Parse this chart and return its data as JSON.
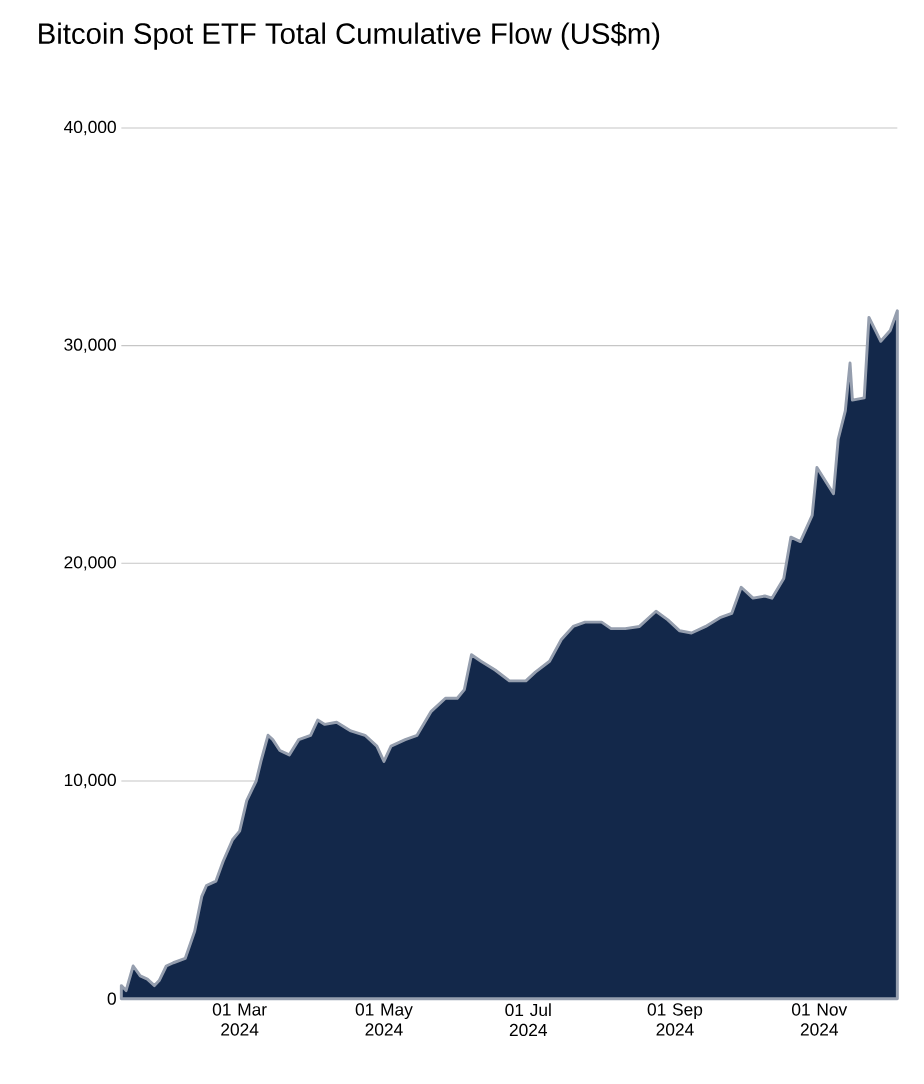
{
  "chart_data": {
    "type": "area",
    "title": "Bitcoin Spot ETF Total Cumulative Flow (US$m)",
    "x": [
      "2024-01-11",
      "2024-01-13",
      "2024-01-16",
      "2024-01-19",
      "2024-01-22",
      "2024-01-25",
      "2024-01-27",
      "2024-01-30",
      "2024-02-02",
      "2024-02-07",
      "2024-02-11",
      "2024-02-14",
      "2024-02-16",
      "2024-02-20",
      "2024-02-23",
      "2024-02-27",
      "2024-03-01",
      "2024-03-04",
      "2024-03-08",
      "2024-03-10",
      "2024-03-13",
      "2024-03-15",
      "2024-03-18",
      "2024-03-22",
      "2024-03-26",
      "2024-03-31",
      "2024-04-03",
      "2024-04-06",
      "2024-04-11",
      "2024-04-17",
      "2024-04-23",
      "2024-04-28",
      "2024-05-01",
      "2024-05-04",
      "2024-05-10",
      "2024-05-15",
      "2024-05-21",
      "2024-05-27",
      "2024-06-01",
      "2024-06-04",
      "2024-06-07",
      "2024-06-11",
      "2024-06-17",
      "2024-06-23",
      "2024-06-30",
      "2024-07-04",
      "2024-07-10",
      "2024-07-15",
      "2024-07-20",
      "2024-07-25",
      "2024-08-01",
      "2024-08-05",
      "2024-08-11",
      "2024-08-17",
      "2024-08-24",
      "2024-08-29",
      "2024-09-03",
      "2024-09-08",
      "2024-09-14",
      "2024-09-20",
      "2024-09-25",
      "2024-09-29",
      "2024-10-04",
      "2024-10-09",
      "2024-10-12",
      "2024-10-17",
      "2024-10-20",
      "2024-10-24",
      "2024-10-29",
      "2024-10-31",
      "2024-11-07",
      "2024-11-09",
      "2024-11-12",
      "2024-11-14",
      "2024-11-15",
      "2024-11-20",
      "2024-11-22",
      "2024-11-27",
      "2024-12-01",
      "2024-12-04"
    ],
    "series": [
      {
        "color": "#13284a",
        "values": [
          600,
          370,
          1500,
          1050,
          900,
          600,
          830,
          1500,
          1650,
          1850,
          3100,
          4700,
          5200,
          5400,
          6300,
          7300,
          7700,
          9100,
          10000,
          10900,
          12100,
          11900,
          11400,
          11200,
          11900,
          12100,
          12800,
          12600,
          12700,
          12300,
          12100,
          11600,
          10900,
          11600,
          11900,
          12100,
          13200,
          13800,
          13800,
          14200,
          15800,
          15500,
          15100,
          14600,
          14600,
          15000,
          15500,
          16500,
          17100,
          17300,
          17300,
          17000,
          17000,
          17100,
          17800,
          17400,
          16900,
          16800,
          17100,
          17500,
          17700,
          18900,
          18400,
          18500,
          18400,
          19300,
          21200,
          21000,
          22200,
          24400,
          23200,
          25700,
          27000,
          29200,
          27500,
          27600,
          31300,
          30200,
          30700,
          31600
        ]
      }
    ],
    "xlim": [
      "2024-01-11",
      "2024-12-04"
    ],
    "xticks": [
      {
        "value": "2024-03-01",
        "label": "01 Mar 2024"
      },
      {
        "value": "2024-05-01",
        "label": "01 May 2024"
      },
      {
        "value": "2024-07-01",
        "label": "01 Jul 2024"
      },
      {
        "value": "2024-09-01",
        "label": "01 Sep 2024"
      },
      {
        "value": "2024-11-01",
        "label": "01 Nov 2024"
      }
    ],
    "ylim": [
      0,
      40000
    ],
    "yticks": [
      0,
      {
        "value": 10000,
        "label": "10,000"
      },
      {
        "value": 20000,
        "label": "20,000"
      },
      {
        "value": 30000,
        "label": "30,000"
      },
      {
        "value": 40000,
        "label": "40,000"
      }
    ],
    "grid": "y"
  }
}
